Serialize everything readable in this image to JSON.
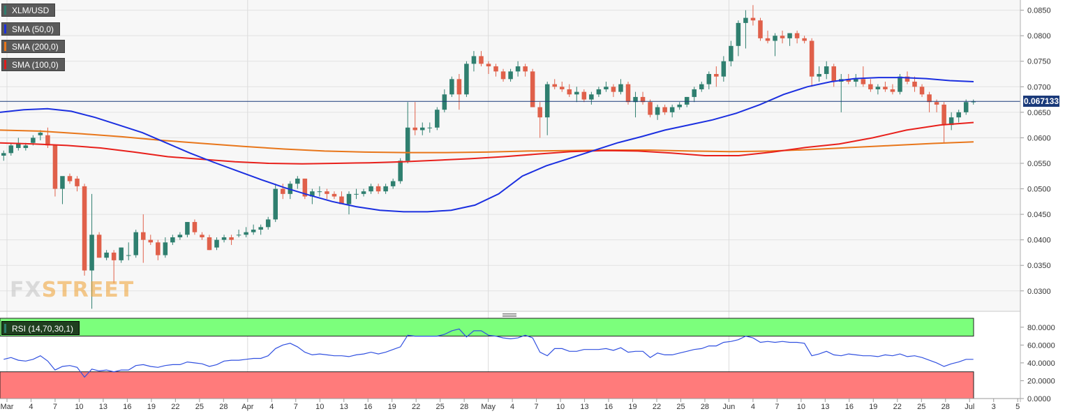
{
  "legends": [
    {
      "label": "XLM/USD",
      "color": "#2e7d6e"
    },
    {
      "label": "SMA (50,0)",
      "color": "#1b2fe0"
    },
    {
      "label": "SMA (200,0)",
      "color": "#e8761a"
    },
    {
      "label": "SMA (100,0)",
      "color": "#e01b1b"
    }
  ],
  "rsi_label": "RSI (14,70,30,1)",
  "current_price_label": "0.067133",
  "logo": {
    "part1": "FX",
    "part2": "STREET"
  },
  "colors": {
    "up": "#2f7f6f",
    "down": "#e0604a",
    "sma50": "#1b2fe0",
    "sma100": "#e8201b",
    "sma200": "#e8761a",
    "rsi_line": "#3050e0",
    "overbought": "#7cff7c",
    "oversold": "#ff7b7b"
  },
  "chart_data": [
    {
      "type": "candlestick",
      "title": "XLM/USD",
      "ylim": [
        0.026,
        0.087
      ],
      "y_ticks": [
        "0.0850",
        "0.0800",
        "0.0750",
        "0.0700",
        "0.0650",
        "0.0600",
        "0.0550",
        "0.0500",
        "0.0450",
        "0.0400",
        "0.0350",
        "0.0300"
      ],
      "x_ticks": [
        "Mar",
        "4",
        "7",
        "10",
        "13",
        "16",
        "19",
        "22",
        "25",
        "28",
        "Apr",
        "4",
        "7",
        "10",
        "13",
        "16",
        "19",
        "22",
        "25",
        "28",
        "May",
        "4",
        "7",
        "10",
        "13",
        "16",
        "19",
        "22",
        "25",
        "28",
        "Jun",
        "4",
        "7",
        "10",
        "13",
        "16",
        "19",
        "22",
        "25",
        "28",
        "Jul",
        "3",
        "5"
      ],
      "candles_ohlc": [
        [
          0.0565,
          0.0575,
          0.0555,
          0.057
        ],
        [
          0.057,
          0.059,
          0.0565,
          0.0585
        ],
        [
          0.058,
          0.06,
          0.0575,
          0.059
        ],
        [
          0.058,
          0.059,
          0.0575,
          0.0585
        ],
        [
          0.059,
          0.0605,
          0.0585,
          0.06
        ],
        [
          0.0605,
          0.0615,
          0.0595,
          0.061
        ],
        [
          0.0605,
          0.062,
          0.058,
          0.0585
        ],
        [
          0.0585,
          0.0585,
          0.0485,
          0.05
        ],
        [
          0.05,
          0.052,
          0.047,
          0.0525
        ],
        [
          0.0525,
          0.053,
          0.051,
          0.0515
        ],
        [
          0.052,
          0.0525,
          0.0495,
          0.0505
        ],
        [
          0.0505,
          0.051,
          0.033,
          0.034
        ],
        [
          0.034,
          0.049,
          0.0265,
          0.041
        ],
        [
          0.041,
          0.0415,
          0.0365,
          0.0365
        ],
        [
          0.0365,
          0.038,
          0.036,
          0.0375
        ],
        [
          0.0375,
          0.038,
          0.0315,
          0.036
        ],
        [
          0.036,
          0.0385,
          0.0355,
          0.0385
        ],
        [
          0.037,
          0.0395,
          0.036,
          0.037
        ],
        [
          0.037,
          0.042,
          0.0365,
          0.0415
        ],
        [
          0.0415,
          0.045,
          0.0355,
          0.04
        ],
        [
          0.04,
          0.041,
          0.039,
          0.0395
        ],
        [
          0.0395,
          0.04,
          0.036,
          0.037
        ],
        [
          0.037,
          0.0405,
          0.0365,
          0.0395
        ],
        [
          0.0395,
          0.041,
          0.039,
          0.0405
        ],
        [
          0.0405,
          0.0415,
          0.04,
          0.041
        ],
        [
          0.041,
          0.0435,
          0.0405,
          0.0435
        ],
        [
          0.0435,
          0.044,
          0.041,
          0.0415
        ],
        [
          0.041,
          0.0415,
          0.04,
          0.0405
        ],
        [
          0.0405,
          0.041,
          0.038,
          0.038
        ],
        [
          0.0385,
          0.0405,
          0.038,
          0.04
        ],
        [
          0.04,
          0.041,
          0.0395,
          0.0405
        ],
        [
          0.0405,
          0.041,
          0.039,
          0.04
        ],
        [
          0.041,
          0.042,
          0.0405,
          0.041
        ],
        [
          0.041,
          0.0425,
          0.0405,
          0.0415
        ],
        [
          0.0415,
          0.043,
          0.041,
          0.042
        ],
        [
          0.042,
          0.043,
          0.041,
          0.0425
        ],
        [
          0.0425,
          0.0445,
          0.042,
          0.044
        ],
        [
          0.044,
          0.051,
          0.0435,
          0.05
        ],
        [
          0.05,
          0.051,
          0.048,
          0.049
        ],
        [
          0.049,
          0.0515,
          0.048,
          0.051
        ],
        [
          0.051,
          0.0525,
          0.05,
          0.052
        ],
        [
          0.052,
          0.052,
          0.048,
          0.0485
        ],
        [
          0.0485,
          0.05,
          0.047,
          0.0495
        ],
        [
          0.0495,
          0.0505,
          0.0485,
          0.0495
        ],
        [
          0.0495,
          0.05,
          0.048,
          0.049
        ],
        [
          0.049,
          0.0495,
          0.048,
          0.0485
        ],
        [
          0.0485,
          0.0495,
          0.047,
          0.047
        ],
        [
          0.047,
          0.0495,
          0.045,
          0.049
        ],
        [
          0.049,
          0.05,
          0.048,
          0.049
        ],
        [
          0.049,
          0.05,
          0.0485,
          0.0495
        ],
        [
          0.0495,
          0.051,
          0.049,
          0.0505
        ],
        [
          0.0505,
          0.051,
          0.049,
          0.0495
        ],
        [
          0.0495,
          0.051,
          0.049,
          0.0505
        ],
        [
          0.0505,
          0.052,
          0.05,
          0.0515
        ],
        [
          0.0515,
          0.056,
          0.051,
          0.0555
        ],
        [
          0.0555,
          0.067,
          0.055,
          0.062
        ],
        [
          0.062,
          0.067,
          0.0605,
          0.0615
        ],
        [
          0.0615,
          0.063,
          0.0605,
          0.062
        ],
        [
          0.062,
          0.063,
          0.061,
          0.062
        ],
        [
          0.062,
          0.066,
          0.0615,
          0.0655
        ],
        [
          0.0655,
          0.0695,
          0.065,
          0.0685
        ],
        [
          0.0685,
          0.072,
          0.068,
          0.0715
        ],
        [
          0.0715,
          0.0725,
          0.0655,
          0.0685
        ],
        [
          0.0685,
          0.075,
          0.068,
          0.0745
        ],
        [
          0.0745,
          0.077,
          0.073,
          0.076
        ],
        [
          0.076,
          0.077,
          0.074,
          0.0745
        ],
        [
          0.0745,
          0.075,
          0.0725,
          0.074
        ],
        [
          0.074,
          0.0745,
          0.072,
          0.073
        ],
        [
          0.073,
          0.0735,
          0.071,
          0.0715
        ],
        [
          0.0715,
          0.0735,
          0.071,
          0.073
        ],
        [
          0.073,
          0.075,
          0.072,
          0.074
        ],
        [
          0.074,
          0.0745,
          0.072,
          0.073
        ],
        [
          0.073,
          0.0735,
          0.066,
          0.066
        ],
        [
          0.066,
          0.067,
          0.06,
          0.064
        ],
        [
          0.064,
          0.071,
          0.0605,
          0.0705
        ],
        [
          0.0705,
          0.0715,
          0.0695,
          0.07
        ],
        [
          0.07,
          0.071,
          0.069,
          0.0695
        ],
        [
          0.0695,
          0.0705,
          0.068,
          0.0685
        ],
        [
          0.0685,
          0.07,
          0.067,
          0.069
        ],
        [
          0.069,
          0.0695,
          0.067,
          0.0675
        ],
        [
          0.0675,
          0.069,
          0.0665,
          0.0685
        ],
        [
          0.0685,
          0.07,
          0.068,
          0.0695
        ],
        [
          0.0695,
          0.071,
          0.069,
          0.07
        ],
        [
          0.07,
          0.0705,
          0.068,
          0.069
        ],
        [
          0.069,
          0.0715,
          0.0685,
          0.0705
        ],
        [
          0.0705,
          0.071,
          0.0665,
          0.067
        ],
        [
          0.067,
          0.069,
          0.064,
          0.068
        ],
        [
          0.068,
          0.069,
          0.0665,
          0.067
        ],
        [
          0.067,
          0.0675,
          0.064,
          0.0645
        ],
        [
          0.0645,
          0.0665,
          0.0635,
          0.066
        ],
        [
          0.066,
          0.0665,
          0.0645,
          0.065
        ],
        [
          0.065,
          0.0665,
          0.064,
          0.066
        ],
        [
          0.066,
          0.067,
          0.0655,
          0.0665
        ],
        [
          0.0665,
          0.068,
          0.066,
          0.068
        ],
        [
          0.068,
          0.07,
          0.067,
          0.0695
        ],
        [
          0.0695,
          0.071,
          0.069,
          0.0705
        ],
        [
          0.0705,
          0.073,
          0.0695,
          0.0725
        ],
        [
          0.0725,
          0.074,
          0.07,
          0.072
        ],
        [
          0.072,
          0.076,
          0.071,
          0.075
        ],
        [
          0.075,
          0.079,
          0.074,
          0.078
        ],
        [
          0.078,
          0.083,
          0.076,
          0.0825
        ],
        [
          0.0825,
          0.085,
          0.0775,
          0.0835
        ],
        [
          0.0835,
          0.086,
          0.082,
          0.083
        ],
        [
          0.083,
          0.0835,
          0.079,
          0.0795
        ],
        [
          0.0795,
          0.081,
          0.0785,
          0.079
        ],
        [
          0.079,
          0.0805,
          0.076,
          0.08
        ],
        [
          0.08,
          0.081,
          0.0785,
          0.0795
        ],
        [
          0.0795,
          0.0805,
          0.078,
          0.0805
        ],
        [
          0.0805,
          0.081,
          0.0785,
          0.0795
        ],
        [
          0.0795,
          0.08,
          0.0785,
          0.079
        ],
        [
          0.079,
          0.0795,
          0.07,
          0.072
        ],
        [
          0.072,
          0.074,
          0.071,
          0.0725
        ],
        [
          0.0725,
          0.075,
          0.0715,
          0.074
        ],
        [
          0.074,
          0.0745,
          0.07,
          0.071
        ],
        [
          0.071,
          0.0725,
          0.065,
          0.0715
        ],
        [
          0.0715,
          0.0725,
          0.0705,
          0.071
        ],
        [
          0.071,
          0.0725,
          0.07,
          0.0715
        ],
        [
          0.0715,
          0.074,
          0.07,
          0.0705
        ],
        [
          0.0705,
          0.0715,
          0.069,
          0.0695
        ],
        [
          0.0695,
          0.0705,
          0.0685,
          0.07
        ],
        [
          0.07,
          0.071,
          0.069,
          0.0695
        ],
        [
          0.0695,
          0.0705,
          0.0685,
          0.069
        ],
        [
          0.069,
          0.0725,
          0.0685,
          0.072
        ],
        [
          0.072,
          0.073,
          0.0705,
          0.071
        ],
        [
          0.071,
          0.072,
          0.069,
          0.07
        ],
        [
          0.07,
          0.0705,
          0.068,
          0.0685
        ],
        [
          0.0685,
          0.069,
          0.065,
          0.067
        ],
        [
          0.067,
          0.0675,
          0.065,
          0.0665
        ],
        [
          0.0665,
          0.067,
          0.059,
          0.0625
        ],
        [
          0.0625,
          0.065,
          0.0615,
          0.064
        ],
        [
          0.064,
          0.0655,
          0.063,
          0.065
        ],
        [
          0.065,
          0.0675,
          0.0645,
          0.067
        ],
        [
          0.067,
          0.0675,
          0.0665,
          0.0671
        ]
      ],
      "sma50": [
        0.065,
        0.0655,
        0.0657,
        0.0652,
        0.064,
        0.0625,
        0.061,
        0.059,
        0.057,
        0.0552,
        0.0535,
        0.0518,
        0.0502,
        0.0488,
        0.0475,
        0.0465,
        0.0458,
        0.0455,
        0.0455,
        0.0458,
        0.0468,
        0.049,
        0.0525,
        0.0545,
        0.056,
        0.0575,
        0.059,
        0.0602,
        0.0615,
        0.0625,
        0.0635,
        0.0648,
        0.0665,
        0.0685,
        0.07,
        0.071,
        0.0716,
        0.0718,
        0.0718,
        0.0716,
        0.0712,
        0.071
      ],
      "sma100": [
        0.059,
        0.0588,
        0.0585,
        0.058,
        0.0572,
        0.0563,
        0.0558,
        0.0553,
        0.055,
        0.0549,
        0.055,
        0.0551,
        0.0553,
        0.0556,
        0.0559,
        0.0563,
        0.0568,
        0.0573,
        0.0575,
        0.0574,
        0.057,
        0.0565,
        0.0565,
        0.0572,
        0.0581,
        0.0588,
        0.06,
        0.0615,
        0.0625,
        0.063
      ],
      "sma200": [
        0.0615,
        0.0613,
        0.0608,
        0.0602,
        0.0595,
        0.0589,
        0.0583,
        0.0578,
        0.0574,
        0.0572,
        0.0571,
        0.0571,
        0.0572,
        0.0574,
        0.0575,
        0.0576,
        0.0576,
        0.0574,
        0.0573,
        0.0574,
        0.0577,
        0.0581,
        0.0585,
        0.0589,
        0.0592
      ],
      "current_price": 0.067133
    },
    {
      "type": "line",
      "title": "RSI (14,70,30,1)",
      "ylim": [
        0,
        90
      ],
      "y_ticks": [
        "80.0000",
        "60.0000",
        "40.0000",
        "20.0000",
        "0.0000"
      ],
      "overbought": 70,
      "oversold": 30,
      "values": [
        44,
        46,
        43,
        42,
        44,
        48,
        42,
        32,
        36,
        37,
        35,
        24,
        33,
        31,
        32,
        30,
        32,
        32,
        37,
        38,
        36,
        35,
        37,
        38,
        38,
        41,
        40,
        39,
        36,
        38,
        42,
        43,
        43,
        44,
        45,
        45,
        48,
        56,
        60,
        62,
        58,
        52,
        49,
        50,
        49,
        48,
        48,
        47,
        49,
        50,
        52,
        50,
        52,
        55,
        58,
        71,
        70,
        70,
        70,
        70,
        72,
        76,
        78,
        69,
        76,
        76,
        71,
        70,
        68,
        67,
        68,
        71,
        68,
        52,
        48,
        56,
        56,
        53,
        53,
        55,
        55,
        55,
        56,
        54,
        57,
        52,
        53,
        53,
        46,
        51,
        49,
        49,
        51,
        53,
        55,
        56,
        59,
        59,
        63,
        64,
        66,
        70,
        68,
        63,
        64,
        63,
        64,
        63,
        63,
        62,
        48,
        50,
        53,
        49,
        48,
        50,
        49,
        48,
        48,
        47,
        49,
        48,
        50,
        47,
        48,
        46,
        43,
        40,
        36,
        39,
        41,
        44,
        44
      ],
      "x_start_index": 0
    }
  ]
}
